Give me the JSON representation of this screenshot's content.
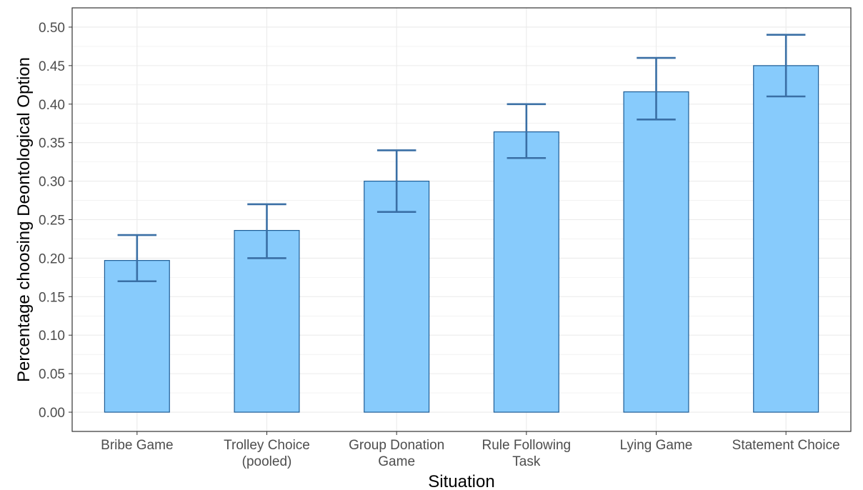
{
  "chart_data": {
    "type": "bar",
    "xlabel": "Situation",
    "ylabel": "Percentage choosing Deontological Option",
    "ylim": [
      -0.025,
      0.525
    ],
    "yticks": [
      "0.00",
      "0.05",
      "0.10",
      "0.15",
      "0.20",
      "0.25",
      "0.30",
      "0.35",
      "0.40",
      "0.45",
      "0.50"
    ],
    "categories": [
      [
        "Bribe Game"
      ],
      [
        "Trolley Choice",
        "(pooled)"
      ],
      [
        "Group Donation",
        "Game"
      ],
      [
        "Rule Following",
        "Task"
      ],
      [
        "Lying Game"
      ],
      [
        "Statement Choice"
      ]
    ],
    "values": [
      0.197,
      0.236,
      0.3,
      0.364,
      0.416,
      0.45
    ],
    "error_low": [
      0.17,
      0.2,
      0.26,
      0.33,
      0.38,
      0.41
    ],
    "error_high": [
      0.23,
      0.27,
      0.34,
      0.4,
      0.46,
      0.49
    ],
    "grid": true,
    "colors": {
      "bar_fill": "#87CBFC",
      "bar_stroke": "#1E5D96",
      "error_bar": "#3A6FA5",
      "grid": "#EBEBEB",
      "panel_border": "#333333"
    }
  }
}
